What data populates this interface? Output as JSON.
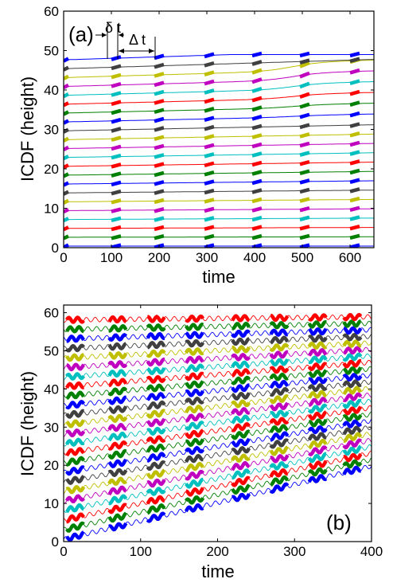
{
  "colors": {
    "palette": [
      "#0000ff",
      "#008000",
      "#ff0000",
      "#00bfbf",
      "#bf00bf",
      "#bfbf00",
      "#404040"
    ]
  },
  "chart_data": [
    {
      "type": "line",
      "panel_label": "(a)",
      "xlabel": "time",
      "ylabel": "ICDF (height)",
      "xlim": [
        0,
        650
      ],
      "ylim": [
        0,
        60
      ],
      "xticks": [
        0,
        100,
        200,
        300,
        400,
        500,
        600
      ],
      "yticks": [
        0,
        10,
        20,
        30,
        40,
        50,
        60
      ],
      "n_lines": 22,
      "line_spacing": 2.25,
      "thick_segment_centers": [
        0,
        110,
        200,
        305,
        405,
        505,
        610
      ],
      "thick_segment_length": 20,
      "annotations": {
        "delta_t_small": "δ t",
        "delta_t_large": "Δ t"
      }
    },
    {
      "type": "line",
      "panel_label": "(b)",
      "xlabel": "time",
      "ylabel": "ICDF (height)",
      "xlim": [
        0,
        400
      ],
      "ylim": [
        0,
        62
      ],
      "xticks": [
        0,
        100,
        200,
        300,
        400
      ],
      "yticks": [
        0,
        10,
        20,
        30,
        40,
        50,
        60
      ],
      "n_lines": 24,
      "line_spacing": 2.5,
      "thick_segment_centers": [
        15,
        70,
        120,
        170,
        230,
        280,
        330,
        375
      ],
      "thick_segment_length": 22
    }
  ]
}
